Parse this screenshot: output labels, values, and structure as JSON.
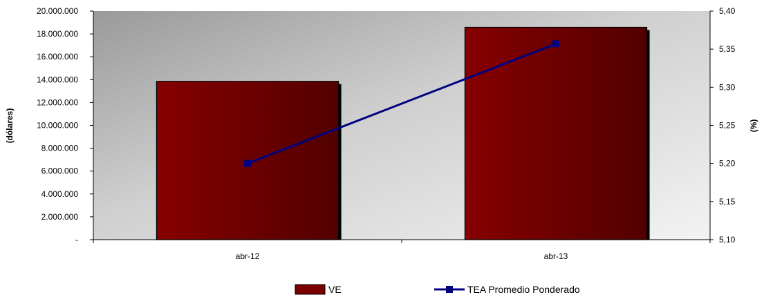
{
  "chart_data": {
    "type": "bar",
    "categories": [
      "abr-12",
      "abr-13"
    ],
    "series": [
      {
        "name": "VE",
        "type": "bar",
        "axis": "left",
        "values": [
          13850000,
          18580000
        ],
        "color": "#7a0000"
      },
      {
        "name": "TEA Promedio Ponderado",
        "type": "line",
        "axis": "right",
        "values": [
          5.2,
          5.357
        ],
        "color": "#000080"
      }
    ],
    "ylabel": "(dólares)",
    "y2label": "(%)",
    "ylim": [
      0,
      20000000
    ],
    "y2lim": [
      5.1,
      5.4
    ],
    "yticks": [
      "-",
      "2.000.000",
      "4.000.000",
      "6.000.000",
      "8.000.000",
      "10.000.000",
      "12.000.000",
      "14.000.000",
      "16.000.000",
      "18.000.000",
      "20.000.000"
    ],
    "y2ticks": [
      "5,10",
      "5,15",
      "5,20",
      "5,25",
      "5,30",
      "5,35",
      "5,40"
    ],
    "grid": false,
    "legend_position": "bottom"
  }
}
